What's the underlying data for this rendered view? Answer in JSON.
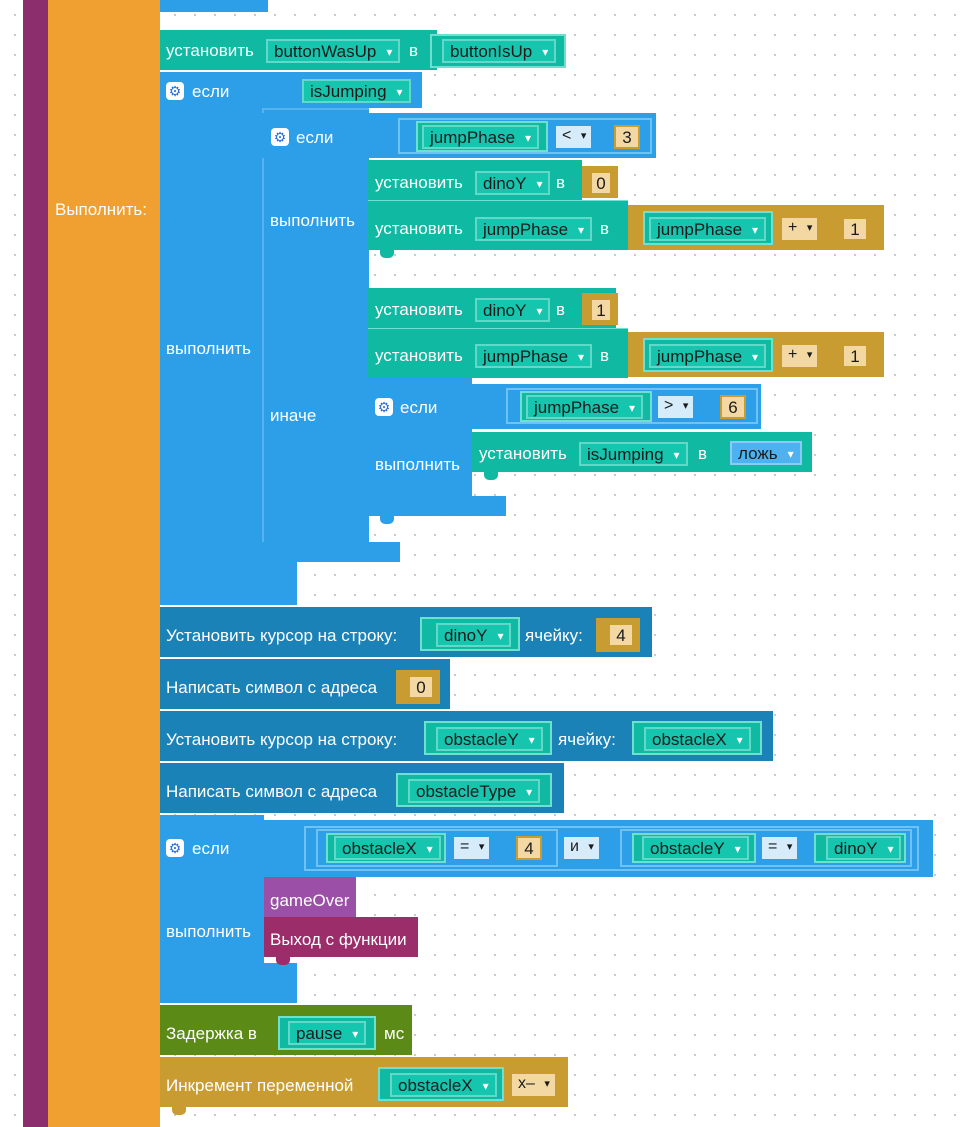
{
  "colors": {
    "function_purple": "#8c2d6e",
    "loop_orange": "#f0a030",
    "logic_blue": "#2d9fe8",
    "variables_teal": "#0fb9a2",
    "math_gold": "#c99c32",
    "lcd_blue": "#1b82b8",
    "time_green": "#5b8a17",
    "proc_purple": "#9b4fa6",
    "return_maroon": "#9a2d6a"
  },
  "loop": {
    "do_label": "Выполнить:"
  },
  "set1": {
    "label": "установить",
    "var": "buttonWasUp",
    "to": "в",
    "value": "buttonIsUp"
  },
  "if1": {
    "if_label": "если",
    "condition": "isJumping",
    "do_label": "выполнить"
  },
  "if2": {
    "if_label": "если",
    "cond_var": "jumpPhase",
    "cond_op": "<",
    "cond_num": "3",
    "do_label": "выполнить",
    "else_label": "иначе"
  },
  "setDinoY0": {
    "label": "установить",
    "var": "dinoY",
    "to": "в",
    "value": "0"
  },
  "setPhase1": {
    "label": "установить",
    "var": "jumpPhase",
    "to": "в",
    "lhs": "jumpPhase",
    "op": "+",
    "num": "1"
  },
  "setDinoY1": {
    "label": "установить",
    "var": "dinoY",
    "to": "в",
    "value": "1"
  },
  "setPhase2": {
    "label": "установить",
    "var": "jumpPhase",
    "to": "в",
    "lhs": "jumpPhase",
    "op": "+",
    "num": "1"
  },
  "if3": {
    "if_label": "если",
    "cond_var": "jumpPhase",
    "cond_op": ">",
    "cond_num": "6",
    "do_label": "выполнить"
  },
  "setJumping": {
    "label": "установить",
    "var": "isJumping",
    "to": "в",
    "value": "ложь"
  },
  "cursor1": {
    "label": "Установить курсор на строку:",
    "row": "dinoY",
    "cell_label": "ячейку:",
    "cell": "4"
  },
  "write1": {
    "label": "Написать символ с адреса",
    "value": "0"
  },
  "cursor2": {
    "label": "Установить курсор на строку:",
    "row": "obstacleY",
    "cell_label": "ячейку:",
    "cell": "obstacleX"
  },
  "write2": {
    "label": "Написать символ с адреса",
    "value": "obstacleType"
  },
  "if4": {
    "if_label": "если",
    "a_var": "obstacleX",
    "a_op": "=",
    "a_num": "4",
    "and_label": "и",
    "b_var": "obstacleY",
    "b_op": "=",
    "b_val": "dinoY",
    "do_label": "выполнить",
    "call": "gameOver",
    "return": "Выход с функции"
  },
  "delay": {
    "label": "Задержка в",
    "var": "pause",
    "unit": "мс"
  },
  "incr": {
    "label": "Инкремент переменной",
    "var": "obstacleX",
    "op": "x–"
  }
}
